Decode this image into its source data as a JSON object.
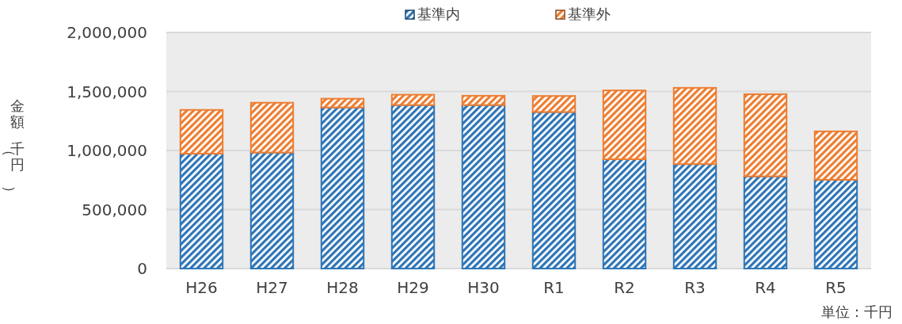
{
  "chart_data": {
    "type": "bar",
    "stacked": true,
    "ylabel": "金額（千円）",
    "annotations": [
      "単位：千円"
    ],
    "categories": [
      "H26",
      "H27",
      "H28",
      "H29",
      "H30",
      "R1",
      "R2",
      "R3",
      "R4",
      "R5"
    ],
    "series": [
      {
        "name": "基準内",
        "color": "#2e75b6",
        "values": [
          973000,
          983000,
          1365000,
          1385000,
          1385000,
          1326000,
          926000,
          885000,
          781000,
          752000
        ]
      },
      {
        "name": "基準外",
        "color": "#ed7d31",
        "values": [
          371000,
          422000,
          74000,
          88000,
          79000,
          136000,
          583000,
          646000,
          696000,
          410000
        ]
      }
    ],
    "ylim": [
      0,
      2000000
    ],
    "yticks": [
      {
        "value": 0,
        "label": "0"
      },
      {
        "value": 500000,
        "label": "500,000"
      },
      {
        "value": 1000000,
        "label": "1,000,000"
      },
      {
        "value": 1500000,
        "label": "1,500,000"
      },
      {
        "value": 2000000,
        "label": "2,000,000"
      }
    ],
    "grid": "y",
    "legend": "top"
  }
}
